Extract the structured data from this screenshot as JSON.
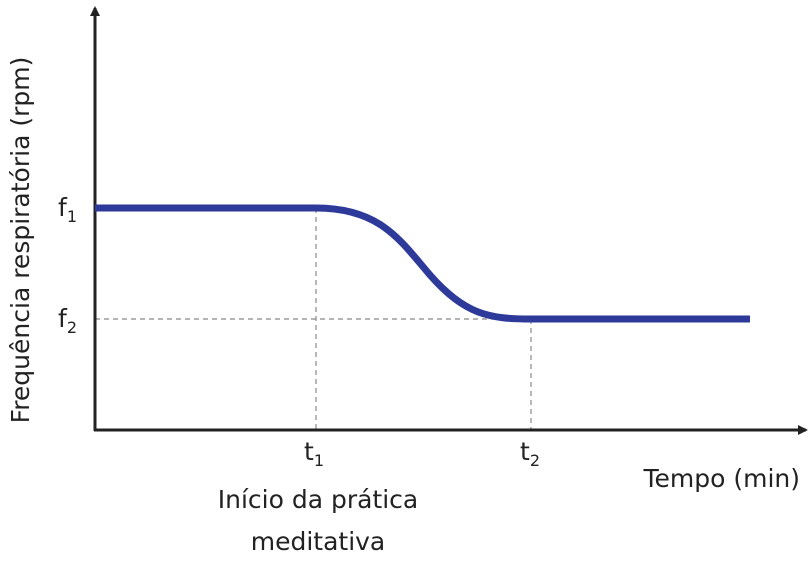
{
  "axes": {
    "y_label": "Frequência respiratória (rpm)",
    "x_label": "Tempo (min)"
  },
  "y_ticks": [
    {
      "base": "f",
      "sub": "1"
    },
    {
      "base": "f",
      "sub": "2"
    }
  ],
  "x_ticks": [
    {
      "base": "t",
      "sub": "1"
    },
    {
      "base": "t",
      "sub": "2"
    }
  ],
  "annotation": [
    "Início da prática",
    "meditativa"
  ]
}
